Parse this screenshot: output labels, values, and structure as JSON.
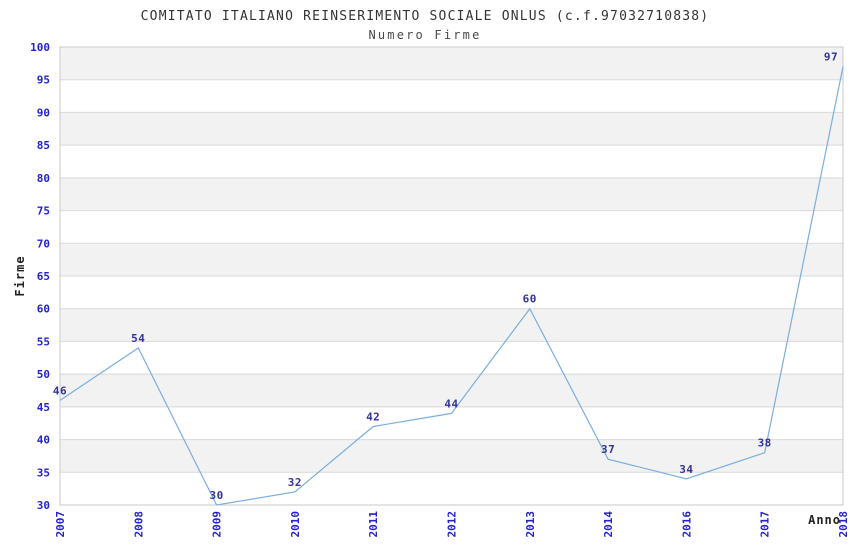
{
  "chart_data": {
    "type": "line",
    "title": "COMITATO ITALIANO REINSERIMENTO SOCIALE ONLUS (c.f.97032710838)",
    "subtitle": "Numero Firme",
    "xlabel": "Anno",
    "ylabel": "Firme",
    "categories": [
      "2007",
      "2008",
      "2009",
      "2010",
      "2011",
      "2012",
      "2013",
      "2014",
      "2016",
      "2017",
      "2018"
    ],
    "values": [
      46,
      54,
      30,
      32,
      42,
      44,
      60,
      37,
      34,
      38,
      97
    ],
    "ylim": [
      30,
      100
    ],
    "ytick_step": 5,
    "yticks": [
      30,
      35,
      40,
      45,
      50,
      55,
      60,
      65,
      70,
      75,
      80,
      85,
      90,
      95,
      100
    ],
    "grid": true,
    "legend_position": "none",
    "x_tick_rotation_deg": -90,
    "data_labels_shown": true,
    "colors": {
      "line": "#7aaede",
      "band_alt": "#f2f2f2",
      "band_base": "#ffffff",
      "gridline": "#d9d9d9",
      "plot_border": "#c9c9c9",
      "tick_label": "#2323cd",
      "point_label": "#333399",
      "title": "#333333",
      "subtitle": "#4a4a4a",
      "axis_title": "#222222",
      "background": "#ffffff"
    }
  }
}
